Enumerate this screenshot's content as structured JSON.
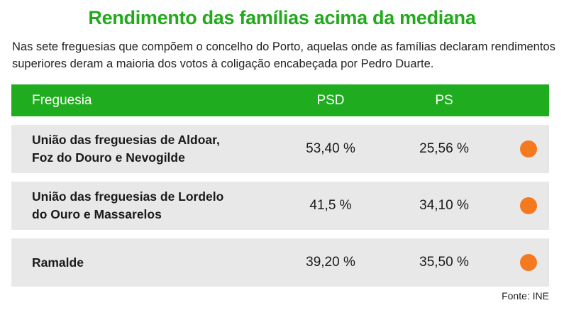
{
  "title": "Rendimento das famílias acima da mediana",
  "subtitle": "Nas sete freguesias que compõem o concelho do Porto, aquelas onde as famílias declaram rendimentos superiores deram a maioria dos votos à coligação encabeçada por Pedro Duarte.",
  "table": {
    "headers": {
      "name": "Freguesia",
      "psd": "PSD",
      "ps": "PS"
    },
    "rows": [
      {
        "name_line1": "União das freguesias de Aldoar,",
        "name_line2": "Foz do Douro e Nevogilde",
        "psd": "53,40 %",
        "ps": "25,56 %",
        "marker_icon": "orange-dot-icon"
      },
      {
        "name_line1": "União das freguesias de Lordelo",
        "name_line2": "do Ouro e Massarelos",
        "psd": "41,5 %",
        "ps": "34,10 %",
        "marker_icon": "orange-dot-icon"
      },
      {
        "name_line1": "Ramalde",
        "name_line2": "",
        "psd": "39,20 %",
        "ps": "35,50 %",
        "marker_icon": "orange-dot-icon"
      }
    ]
  },
  "source": "Fonte: INE",
  "colors": {
    "accent_green": "#1fad1f",
    "title_green": "#22aa1c",
    "marker_orange": "#f57a1f",
    "row_bg": "#e8e8e8"
  }
}
